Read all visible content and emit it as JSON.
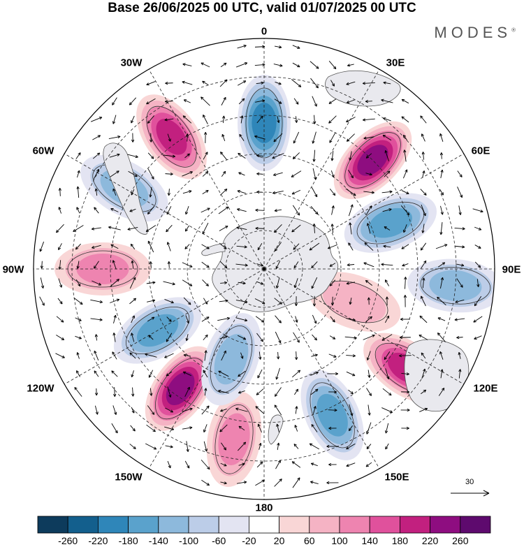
{
  "title": "Base 26/06/2025 00 UTC, valid 01/07/2025 00 UTC",
  "brand": "MODES",
  "brand_mark": "®",
  "longitude_labels": {
    "lon_0": "0",
    "lon_30E": "30E",
    "lon_60E": "60E",
    "lon_90E": "90E",
    "lon_120E": "120E",
    "lon_150E": "150E",
    "lon_180": "180",
    "lon_150W": "150W",
    "lon_120W": "120W",
    "lon_90W": "90W",
    "lon_60W": "60W",
    "lon_30W": "30W"
  },
  "wind_scale_label": "30",
  "colorbar": {
    "tick_labels": [
      "-260",
      "-220",
      "-180",
      "-140",
      "-100",
      "-60",
      "-20",
      "20",
      "60",
      "100",
      "140",
      "180",
      "220",
      "260"
    ],
    "colors": [
      "#0d3b5c",
      "#135f8d",
      "#2f86b9",
      "#5aa2cc",
      "#8db9dc",
      "#bccde8",
      "#e3e4f2",
      "#ffffff",
      "#f9d6d6",
      "#f5b3c4",
      "#ee84b0",
      "#e0519c",
      "#c2207f",
      "#8e0d80",
      "#5e0a6e"
    ]
  },
  "anomaly_centers": [
    {
      "lon": 0,
      "lat": -52,
      "value": -200
    },
    {
      "lon": 45,
      "lat": -50,
      "value": 240
    },
    {
      "lon": -35,
      "lat": -48,
      "value": 220
    },
    {
      "lon": -60,
      "lat": -48,
      "value": -150
    },
    {
      "lon": 70,
      "lat": -55,
      "value": -180
    },
    {
      "lon": 95,
      "lat": -40,
      "value": -150
    },
    {
      "lon": 125,
      "lat": -45,
      "value": 200
    },
    {
      "lon": -145,
      "lat": -52,
      "value": 240
    },
    {
      "lon": -120,
      "lat": -58,
      "value": -160
    },
    {
      "lon": -90,
      "lat": -48,
      "value": 140
    },
    {
      "lon": 155,
      "lat": -48,
      "value": -180
    },
    {
      "lon": -170,
      "lat": -45,
      "value": 140
    },
    {
      "lon": -160,
      "lat": -65,
      "value": -120
    },
    {
      "lon": 110,
      "lat": -65,
      "value": 80
    }
  ]
}
